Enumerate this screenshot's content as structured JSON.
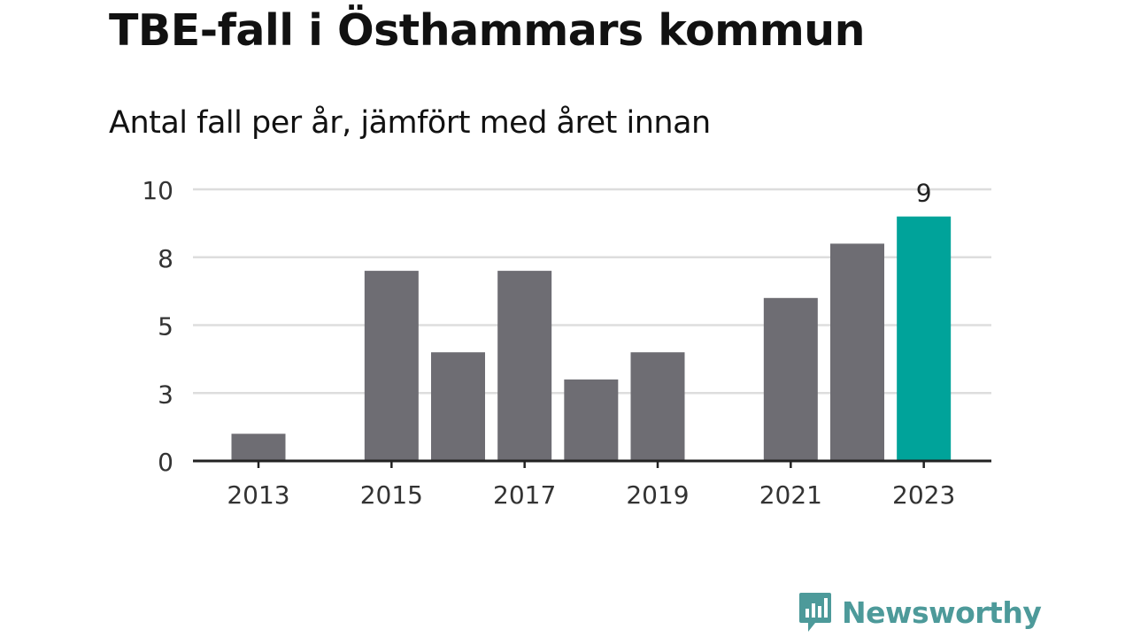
{
  "title": "TBE-fall i Östhammars kommun",
  "subtitle": "Antal fall per år, jämfört med året innan",
  "brand": {
    "name": "Newsworthy",
    "color": "#4d9a9a"
  },
  "colors": {
    "bar": "#6e6d73",
    "highlight": "#00a39a",
    "grid": "#dddddd",
    "axis": "#222222",
    "text": "#333333"
  },
  "chart_data": {
    "type": "bar",
    "categories": [
      "2013",
      "2014",
      "2015",
      "2016",
      "2017",
      "2018",
      "2019",
      "2020",
      "2021",
      "2022",
      "2023"
    ],
    "values": [
      1,
      0,
      7,
      4,
      7,
      3,
      4,
      0,
      6,
      8,
      9
    ],
    "highlight_category": "2023",
    "value_labels": [
      {
        "category": "2023",
        "text": "9"
      }
    ],
    "x_tick_labels": [
      "2013",
      "2015",
      "2017",
      "2019",
      "2021",
      "2023"
    ],
    "y_tick_labels": [
      "0",
      "3",
      "5",
      "8",
      "10"
    ],
    "ylim": [
      0,
      10
    ],
    "grid": true,
    "xlabel": "",
    "ylabel": ""
  }
}
